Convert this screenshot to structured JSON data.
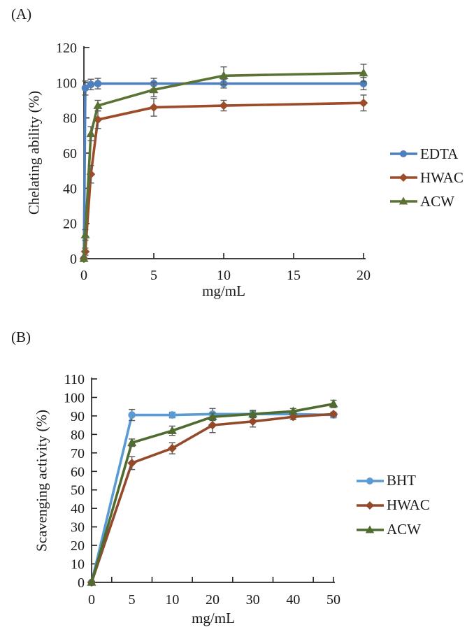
{
  "page": {
    "background": "#ffffff",
    "axis_color": "#262626",
    "text_color": "#1a1a1a",
    "error_bar_color": "#595959"
  },
  "chart_data": [
    {
      "type": "line",
      "panel_label": "(A)",
      "xlabel": "mg/mL",
      "ylabel": "Chelating ability (%)",
      "x_axis": {
        "mode": "linear",
        "min": 0,
        "max": 20,
        "ticks": [
          0,
          5,
          10,
          15,
          20
        ]
      },
      "y_axis": {
        "min": 0,
        "max": 120,
        "tick_step": 20,
        "ticks": [
          0,
          20,
          40,
          60,
          80,
          100,
          120
        ]
      },
      "x": [
        0,
        0.1,
        0.5,
        1,
        5,
        10,
        20
      ],
      "series": [
        {
          "name": "EDTA",
          "color": "#4d80bd",
          "marker": "circle",
          "values": [
            0,
            97,
            99,
            99.5,
            99.5,
            99.5,
            99.5
          ],
          "errors": [
            0,
            4,
            3,
            3,
            3,
            2.5,
            3.5
          ]
        },
        {
          "name": "HWAC",
          "color": "#9d4c29",
          "marker": "diamond",
          "values": [
            0,
            4,
            48,
            79,
            86,
            87,
            88.5
          ],
          "errors": [
            0,
            2,
            5,
            5,
            5,
            3,
            4.5
          ]
        },
        {
          "name": "ACW",
          "color": "#5a7334",
          "marker": "triangle",
          "values": [
            0,
            13.5,
            71,
            87,
            96,
            104,
            105.5
          ],
          "errors": [
            0,
            3,
            4,
            3,
            4,
            5,
            5
          ]
        }
      ],
      "legend_position": "right"
    },
    {
      "type": "line",
      "panel_label": "(B)",
      "xlabel": "mg/mL",
      "ylabel": "Scavenging activity (%)",
      "x_axis": {
        "mode": "category",
        "categories": [
          0,
          5,
          10,
          20,
          30,
          40,
          50
        ]
      },
      "y_axis": {
        "min": 0,
        "max": 110,
        "tick_step": 10,
        "ticks": [
          0,
          10,
          20,
          30,
          40,
          50,
          60,
          70,
          80,
          90,
          100,
          110
        ]
      },
      "series": [
        {
          "name": "BHT",
          "color": "#5b9bd5",
          "marker": "circle",
          "values": [
            0,
            90.5,
            90.5,
            91,
            91,
            91,
            90.5
          ],
          "errors": [
            0,
            3,
            1.5,
            3,
            1.5,
            1.5,
            1.5
          ]
        },
        {
          "name": "HWAC",
          "color": "#95492b",
          "marker": "diamond",
          "values": [
            0,
            64.5,
            72.5,
            85,
            87,
            89.5,
            91
          ],
          "errors": [
            0,
            3.5,
            3,
            4,
            3,
            1.5,
            1
          ]
        },
        {
          "name": "ACW",
          "color": "#4f6b30",
          "marker": "triangle",
          "values": [
            0,
            75.5,
            82,
            89.5,
            91,
            92.5,
            96.5
          ],
          "errors": [
            0,
            2,
            2.5,
            2,
            2,
            1.5,
            2
          ]
        }
      ],
      "legend_position": "right"
    }
  ]
}
